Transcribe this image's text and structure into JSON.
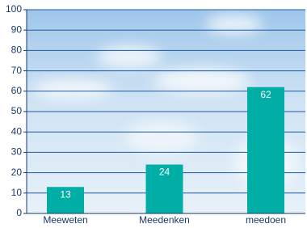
{
  "chart_data": {
    "type": "bar",
    "categories": [
      "Meeweten",
      "Meedenken",
      "meedoen"
    ],
    "values": [
      13,
      24,
      62
    ],
    "color": "#00aea6",
    "grid_color": "#1d5aa6",
    "ylim": [
      0,
      100
    ],
    "yticks": [
      0,
      10,
      20,
      30,
      40,
      50,
      60,
      70,
      80,
      90,
      100
    ],
    "grid": true
  }
}
